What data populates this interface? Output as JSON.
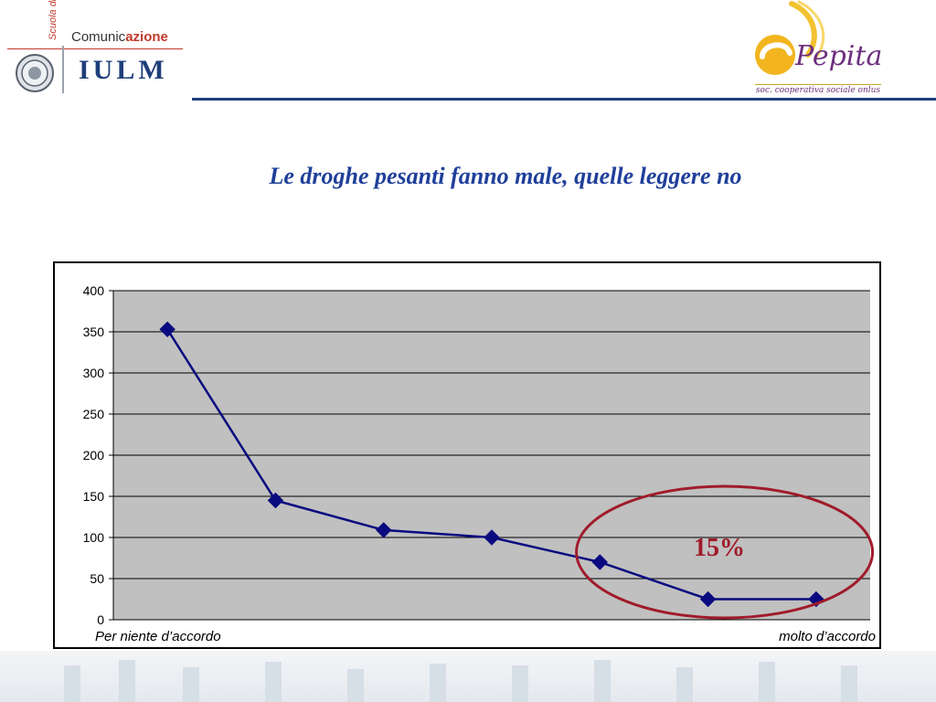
{
  "header": {
    "iulm": {
      "scuola_label": "Scuola di",
      "comunic_label": "Comunic",
      "azione_label": "azione",
      "wordmark": "IULM"
    },
    "pepita": {
      "wordmark": "Pepita",
      "subtitle": "soc. cooperativa sociale onlus"
    },
    "rule_color": "#1f3f7a"
  },
  "slide": {
    "title": "Le droghe pesanti fanno male, quelle leggere no"
  },
  "chart_data": {
    "type": "line",
    "title": "",
    "x": [
      1,
      2,
      3,
      4,
      5,
      6,
      7
    ],
    "series": [
      {
        "values": [
          353,
          145,
          109,
          100,
          70,
          25,
          25
        ],
        "color": "#0a0a80",
        "marker": "diamond"
      }
    ],
    "ylim": [
      0,
      400
    ],
    "yticks": [
      0,
      50,
      100,
      150,
      200,
      250,
      300,
      350,
      400
    ],
    "x_left_label": "Per niente d’accordo",
    "x_right_label": "molto d’accordo",
    "grid": true,
    "plot_background": "#c0c0c0",
    "annotation": {
      "text": "15%",
      "color": "#a01b2a",
      "encircles_points": [
        5,
        6,
        7
      ]
    }
  }
}
